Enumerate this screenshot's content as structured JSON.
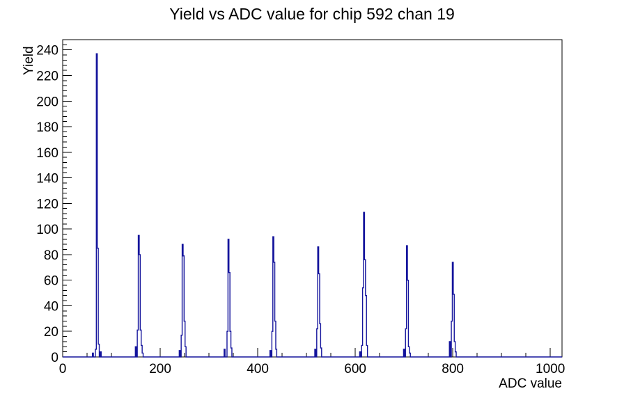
{
  "header": {
    "title": "Yield vs ADC value for chip 592 chan 19"
  },
  "chart_data": {
    "type": "line",
    "subtype": "step-histogram",
    "title": "Yield vs ADC value for chip 592 chan 19",
    "xlabel": "ADC value",
    "ylabel": "Yield",
    "xlim": [
      0,
      1024
    ],
    "ylim": [
      0,
      248
    ],
    "grid": false,
    "legend": false,
    "background_color": "#ffffff",
    "axis_color": "#000000",
    "line_color": "#14149c",
    "x_tick_labels": [
      "0",
      "200",
      "400",
      "600",
      "800",
      "1000"
    ],
    "x_major_ticks": [
      0,
      200,
      400,
      600,
      800,
      1000
    ],
    "x_minor_step": 50,
    "y_tick_labels": [
      "0",
      "20",
      "40",
      "60",
      "80",
      "100",
      "120",
      "140",
      "160",
      "180",
      "200",
      "220",
      "240"
    ],
    "y_major_ticks": [
      0,
      20,
      40,
      60,
      80,
      100,
      120,
      140,
      160,
      180,
      200,
      220,
      240
    ],
    "y_minor_step": 4,
    "peaks": [
      {
        "adc": 70,
        "yield": 237
      },
      {
        "adc": 156,
        "yield": 95
      },
      {
        "adc": 246,
        "yield": 88
      },
      {
        "adc": 340,
        "yield": 92
      },
      {
        "adc": 432,
        "yield": 94
      },
      {
        "adc": 524,
        "yield": 86
      },
      {
        "adc": 618,
        "yield": 113
      },
      {
        "adc": 706,
        "yield": 87
      },
      {
        "adc": 800,
        "yield": 74
      }
    ],
    "bins": [
      [
        62,
        3
      ],
      [
        68,
        6
      ],
      [
        70,
        237
      ],
      [
        72,
        85
      ],
      [
        74,
        10
      ],
      [
        78,
        4
      ],
      [
        150,
        8
      ],
      [
        154,
        21
      ],
      [
        156,
        95
      ],
      [
        158,
        80
      ],
      [
        160,
        21
      ],
      [
        162,
        9
      ],
      [
        164,
        3
      ],
      [
        240,
        5
      ],
      [
        244,
        17
      ],
      [
        246,
        88
      ],
      [
        248,
        79
      ],
      [
        250,
        28
      ],
      [
        252,
        8
      ],
      [
        332,
        6
      ],
      [
        338,
        20
      ],
      [
        340,
        92
      ],
      [
        342,
        66
      ],
      [
        344,
        20
      ],
      [
        346,
        7
      ],
      [
        426,
        5
      ],
      [
        430,
        20
      ],
      [
        432,
        94
      ],
      [
        434,
        74
      ],
      [
        436,
        28
      ],
      [
        438,
        6
      ],
      [
        518,
        6
      ],
      [
        522,
        22
      ],
      [
        524,
        86
      ],
      [
        526,
        65
      ],
      [
        528,
        26
      ],
      [
        530,
        7
      ],
      [
        610,
        4
      ],
      [
        614,
        9
      ],
      [
        616,
        54
      ],
      [
        618,
        113
      ],
      [
        620,
        76
      ],
      [
        622,
        48
      ],
      [
        624,
        9
      ],
      [
        700,
        6
      ],
      [
        704,
        22
      ],
      [
        706,
        87
      ],
      [
        708,
        60
      ],
      [
        710,
        8
      ],
      [
        712,
        3
      ],
      [
        794,
        12
      ],
      [
        798,
        28
      ],
      [
        800,
        74
      ],
      [
        802,
        49
      ],
      [
        804,
        12
      ],
      [
        806,
        4
      ]
    ]
  }
}
